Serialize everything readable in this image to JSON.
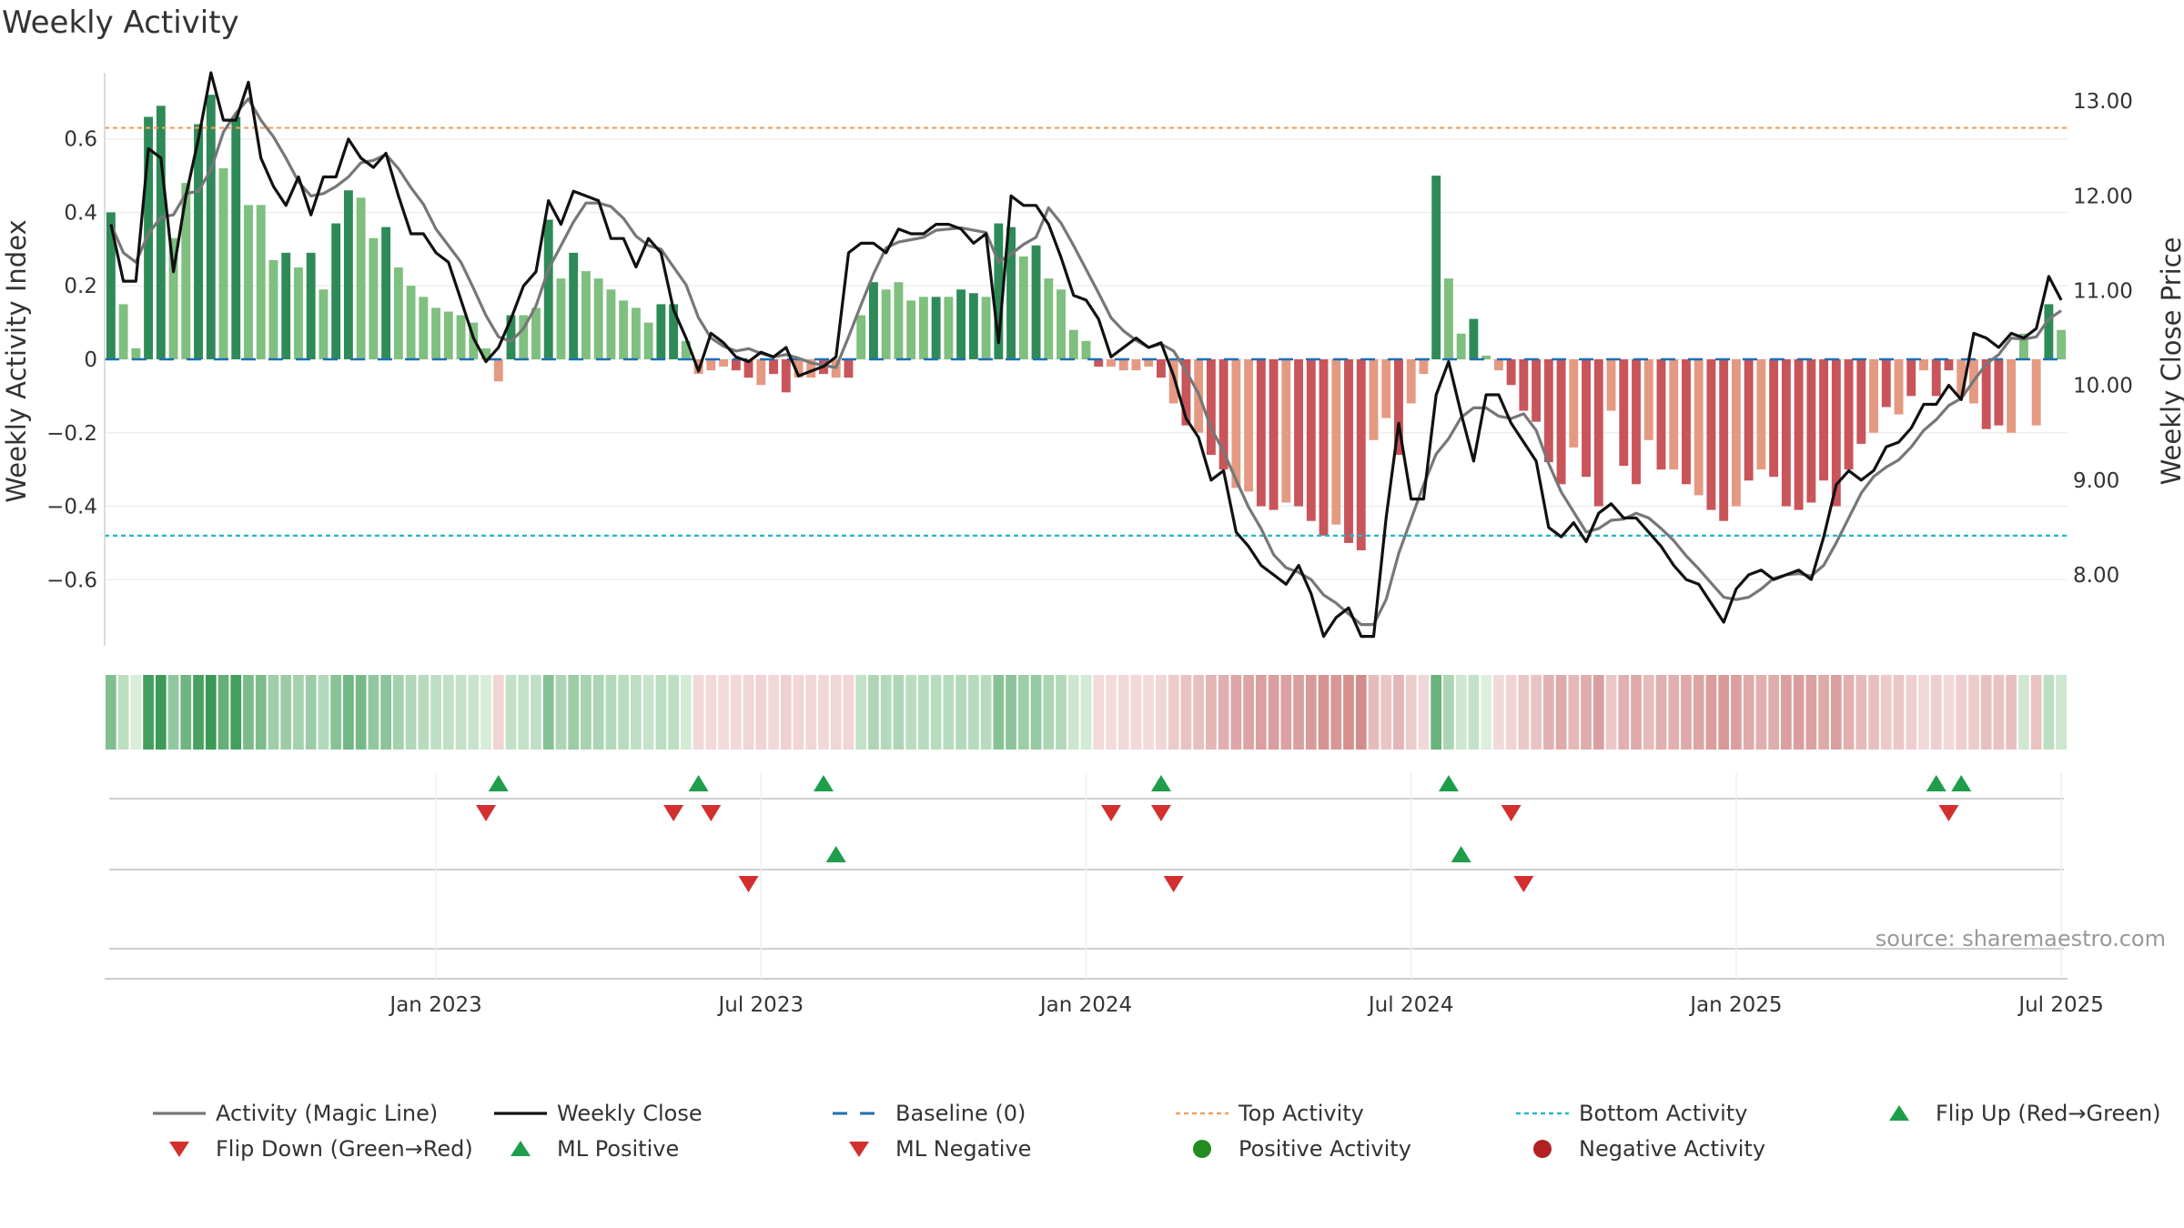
{
  "title": "Weekly Activity",
  "source": "source: sharemaestro.com",
  "colors": {
    "pos_strong": "#2e8b57",
    "pos_light": "#7fbf7f",
    "neg_strong": "#c8555a",
    "neg_light": "#e49a82",
    "magic_line": "#777777",
    "close_line": "#111111",
    "baseline": "#1f6fb2",
    "top_activity": "#f0a060",
    "bottom_activity": "#22b8cf",
    "flip_up": "#1e9e4a",
    "flip_down": "#d32f2f",
    "positive_dot": "#228b22",
    "negative_dot": "#b22222"
  },
  "chart_data": {
    "type": "bar",
    "title": "Weekly Activity",
    "ylabel_left": "Weekly Activity Index",
    "ylabel_right": "Weekly Close Price",
    "ylim_left": [
      -0.78,
      0.78
    ],
    "ylim_right": [
      7.25,
      13.3
    ],
    "yticks_left": [
      {
        "v": 0.6,
        "label": "0.6"
      },
      {
        "v": 0.4,
        "label": "0.4"
      },
      {
        "v": 0.2,
        "label": "0.2"
      },
      {
        "v": 0,
        "label": "0"
      },
      {
        "v": -0.2,
        "label": "−0.2"
      },
      {
        "v": -0.4,
        "label": "−0.4"
      },
      {
        "v": -0.6,
        "label": "−0.6"
      }
    ],
    "yticks_right": [
      {
        "v": 13,
        "label": "13.00"
      },
      {
        "v": 12,
        "label": "12.00"
      },
      {
        "v": 11,
        "label": "11.00"
      },
      {
        "v": 10,
        "label": "10.00"
      },
      {
        "v": 9,
        "label": "9.00"
      },
      {
        "v": 8,
        "label": "8.00"
      }
    ],
    "x_ticks": [
      {
        "week": 26,
        "label": "Jan 2023"
      },
      {
        "week": 52,
        "label": "Jul 2023"
      },
      {
        "week": 78,
        "label": "Jan 2024"
      },
      {
        "week": 104,
        "label": "Jul 2024"
      },
      {
        "week": 130,
        "label": "Jan 2025"
      },
      {
        "week": 156,
        "label": "Jul 2025"
      }
    ],
    "weeks": 157,
    "top_activity": 0.63,
    "bottom_activity": -0.48,
    "baseline": 0,
    "activity_keys": [
      [
        0,
        0.4
      ],
      [
        1,
        0.15
      ],
      [
        2,
        0.03
      ],
      [
        3,
        0.66
      ],
      [
        4,
        0.69
      ],
      [
        5,
        0.33
      ],
      [
        6,
        0.48
      ],
      [
        7,
        0.64
      ],
      [
        8,
        0.72
      ],
      [
        9,
        0.52
      ],
      [
        10,
        0.66
      ],
      [
        11,
        0.42
      ],
      [
        12,
        0.42
      ],
      [
        13,
        0.27
      ],
      [
        14,
        0.29
      ],
      [
        15,
        0.25
      ],
      [
        16,
        0.29
      ],
      [
        17,
        0.19
      ],
      [
        18,
        0.37
      ],
      [
        19,
        0.46
      ],
      [
        20,
        0.44
      ],
      [
        21,
        0.33
      ],
      [
        22,
        0.36
      ],
      [
        23,
        0.25
      ],
      [
        24,
        0.2
      ],
      [
        25,
        0.17
      ],
      [
        26,
        0.14
      ],
      [
        27,
        0.13
      ],
      [
        28,
        0.12
      ],
      [
        29,
        0.1
      ],
      [
        30,
        0.03
      ],
      [
        31,
        -0.06
      ],
      [
        32,
        0.12
      ],
      [
        33,
        0.12
      ],
      [
        34,
        0.14
      ],
      [
        35,
        0.38
      ],
      [
        36,
        0.22
      ],
      [
        37,
        0.29
      ],
      [
        38,
        0.24
      ],
      [
        39,
        0.22
      ],
      [
        40,
        0.19
      ],
      [
        41,
        0.16
      ],
      [
        42,
        0.14
      ],
      [
        43,
        0.1
      ],
      [
        44,
        0.15
      ],
      [
        45,
        0.15
      ],
      [
        46,
        0.05
      ],
      [
        47,
        -0.04
      ],
      [
        48,
        -0.03
      ],
      [
        49,
        -0.02
      ],
      [
        50,
        -0.03
      ],
      [
        51,
        -0.05
      ],
      [
        52,
        -0.07
      ],
      [
        53,
        -0.04
      ],
      [
        54,
        -0.09
      ],
      [
        55,
        -0.05
      ],
      [
        56,
        -0.05
      ],
      [
        57,
        -0.04
      ],
      [
        58,
        -0.05
      ],
      [
        59,
        -0.05
      ],
      [
        60,
        0.12
      ],
      [
        61,
        0.21
      ],
      [
        62,
        0.19
      ],
      [
        63,
        0.21
      ],
      [
        64,
        0.16
      ],
      [
        65,
        0.17
      ],
      [
        66,
        0.17
      ],
      [
        67,
        0.17
      ],
      [
        68,
        0.19
      ],
      [
        69,
        0.18
      ],
      [
        70,
        0.17
      ],
      [
        71,
        0.37
      ],
      [
        72,
        0.36
      ],
      [
        73,
        0.28
      ],
      [
        74,
        0.31
      ],
      [
        75,
        0.22
      ],
      [
        76,
        0.19
      ],
      [
        77,
        0.08
      ],
      [
        78,
        0.05
      ],
      [
        79,
        -0.02
      ],
      [
        80,
        -0.02
      ],
      [
        81,
        -0.03
      ],
      [
        82,
        -0.03
      ],
      [
        83,
        -0.02
      ],
      [
        84,
        -0.05
      ],
      [
        85,
        -0.12
      ],
      [
        86,
        -0.18
      ],
      [
        87,
        -0.2
      ],
      [
        88,
        -0.26
      ],
      [
        89,
        -0.3
      ],
      [
        90,
        -0.35
      ],
      [
        91,
        -0.36
      ],
      [
        92,
        -0.4
      ],
      [
        93,
        -0.41
      ],
      [
        94,
        -0.39
      ],
      [
        95,
        -0.4
      ],
      [
        96,
        -0.44
      ],
      [
        97,
        -0.48
      ],
      [
        98,
        -0.45
      ],
      [
        99,
        -0.5
      ],
      [
        100,
        -0.52
      ],
      [
        101,
        -0.22
      ],
      [
        102,
        -0.16
      ],
      [
        103,
        -0.26
      ],
      [
        104,
        -0.12
      ],
      [
        105,
        -0.04
      ],
      [
        106,
        0.5
      ],
      [
        107,
        0.22
      ],
      [
        108,
        0.07
      ],
      [
        109,
        0.11
      ],
      [
        110,
        0.01
      ],
      [
        111,
        -0.03
      ],
      [
        112,
        -0.07
      ],
      [
        113,
        -0.14
      ],
      [
        114,
        -0.17
      ],
      [
        115,
        -0.28
      ],
      [
        116,
        -0.34
      ],
      [
        117,
        -0.24
      ],
      [
        118,
        -0.32
      ],
      [
        119,
        -0.4
      ],
      [
        120,
        -0.14
      ],
      [
        121,
        -0.29
      ],
      [
        122,
        -0.34
      ],
      [
        123,
        -0.22
      ],
      [
        124,
        -0.3
      ],
      [
        125,
        -0.3
      ],
      [
        126,
        -0.34
      ],
      [
        127,
        -0.37
      ],
      [
        128,
        -0.41
      ],
      [
        129,
        -0.44
      ],
      [
        130,
        -0.4
      ],
      [
        131,
        -0.33
      ],
      [
        132,
        -0.3
      ],
      [
        133,
        -0.32
      ],
      [
        134,
        -0.4
      ],
      [
        135,
        -0.41
      ],
      [
        136,
        -0.39
      ],
      [
        137,
        -0.33
      ],
      [
        138,
        -0.4
      ],
      [
        139,
        -0.3
      ],
      [
        140,
        -0.23
      ],
      [
        141,
        -0.2
      ],
      [
        142,
        -0.13
      ],
      [
        143,
        -0.15
      ],
      [
        144,
        -0.1
      ],
      [
        145,
        -0.03
      ],
      [
        146,
        -0.1
      ],
      [
        147,
        -0.03
      ],
      [
        148,
        -0.1
      ],
      [
        149,
        -0.12
      ],
      [
        150,
        -0.19
      ],
      [
        151,
        -0.18
      ],
      [
        152,
        -0.2
      ],
      [
        153,
        0.07
      ],
      [
        154,
        -0.18
      ],
      [
        155,
        0.15
      ],
      [
        156,
        0.08
      ]
    ],
    "strong_weeks": [
      0,
      3,
      4,
      7,
      8,
      10,
      14,
      16,
      18,
      19,
      22,
      32,
      35,
      37,
      44,
      45,
      50,
      51,
      53,
      54,
      57,
      59,
      61,
      66,
      68,
      69,
      71,
      72,
      74,
      79,
      84,
      86,
      88,
      89,
      92,
      93,
      95,
      96,
      97,
      99,
      100,
      103,
      106,
      109,
      112,
      113,
      114,
      115,
      116,
      118,
      119,
      121,
      122,
      124,
      126,
      128,
      129,
      131,
      133,
      134,
      135,
      136,
      137,
      138,
      139,
      140,
      142,
      144,
      146,
      147,
      150,
      151,
      155
    ],
    "close_keys": [
      [
        0,
        11.7
      ],
      [
        1,
        11.1
      ],
      [
        2,
        11.1
      ],
      [
        3,
        12.5
      ],
      [
        4,
        12.4
      ],
      [
        5,
        11.2
      ],
      [
        6,
        12.0
      ],
      [
        7,
        12.6
      ],
      [
        8,
        13.3
      ],
      [
        9,
        12.8
      ],
      [
        10,
        12.8
      ],
      [
        11,
        13.2
      ],
      [
        12,
        12.4
      ],
      [
        13,
        12.1
      ],
      [
        14,
        11.9
      ],
      [
        15,
        12.2
      ],
      [
        16,
        11.8
      ],
      [
        17,
        12.2
      ],
      [
        18,
        12.2
      ],
      [
        19,
        12.6
      ],
      [
        20,
        12.4
      ],
      [
        21,
        12.3
      ],
      [
        22,
        12.45
      ],
      [
        23,
        12.0
      ],
      [
        24,
        11.6
      ],
      [
        25,
        11.6
      ],
      [
        26,
        11.4
      ],
      [
        27,
        11.3
      ],
      [
        28,
        10.9
      ],
      [
        29,
        10.5
      ],
      [
        30,
        10.25
      ],
      [
        31,
        10.4
      ],
      [
        32,
        10.7
      ],
      [
        33,
        11.05
      ],
      [
        34,
        11.2
      ],
      [
        35,
        11.95
      ],
      [
        36,
        11.7
      ],
      [
        37,
        12.05
      ],
      [
        38,
        12.0
      ],
      [
        39,
        11.95
      ],
      [
        40,
        11.55
      ],
      [
        41,
        11.55
      ],
      [
        42,
        11.25
      ],
      [
        43,
        11.55
      ],
      [
        44,
        11.4
      ],
      [
        45,
        10.8
      ],
      [
        46,
        10.5
      ],
      [
        47,
        10.15
      ],
      [
        48,
        10.55
      ],
      [
        49,
        10.45
      ],
      [
        50,
        10.3
      ],
      [
        51,
        10.25
      ],
      [
        52,
        10.35
      ],
      [
        53,
        10.3
      ],
      [
        54,
        10.4
      ],
      [
        55,
        10.1
      ],
      [
        56,
        10.15
      ],
      [
        57,
        10.2
      ],
      [
        58,
        10.3
      ],
      [
        59,
        11.4
      ],
      [
        60,
        11.5
      ],
      [
        61,
        11.5
      ],
      [
        62,
        11.4
      ],
      [
        63,
        11.65
      ],
      [
        64,
        11.6
      ],
      [
        65,
        11.6
      ],
      [
        66,
        11.7
      ],
      [
        67,
        11.7
      ],
      [
        68,
        11.65
      ],
      [
        69,
        11.5
      ],
      [
        70,
        11.6
      ],
      [
        71,
        10.45
      ],
      [
        72,
        12.0
      ],
      [
        73,
        11.9
      ],
      [
        74,
        11.9
      ],
      [
        75,
        11.7
      ],
      [
        76,
        11.35
      ],
      [
        77,
        10.95
      ],
      [
        78,
        10.9
      ],
      [
        79,
        10.7
      ],
      [
        80,
        10.3
      ],
      [
        81,
        10.4
      ],
      [
        82,
        10.5
      ],
      [
        83,
        10.4
      ],
      [
        84,
        10.45
      ],
      [
        85,
        10.1
      ],
      [
        86,
        9.65
      ],
      [
        87,
        9.45
      ],
      [
        88,
        9.0
      ],
      [
        89,
        9.1
      ],
      [
        90,
        8.45
      ],
      [
        91,
        8.3
      ],
      [
        92,
        8.1
      ],
      [
        93,
        8.0
      ],
      [
        94,
        7.9
      ],
      [
        95,
        8.1
      ],
      [
        96,
        7.8
      ],
      [
        97,
        7.35
      ],
      [
        98,
        7.55
      ],
      [
        99,
        7.65
      ],
      [
        100,
        7.35
      ],
      [
        101,
        7.35
      ],
      [
        102,
        8.6
      ],
      [
        103,
        9.6
      ],
      [
        104,
        8.8
      ],
      [
        105,
        8.8
      ],
      [
        106,
        9.9
      ],
      [
        107,
        10.25
      ],
      [
        108,
        9.7
      ],
      [
        109,
        9.2
      ],
      [
        110,
        9.9
      ],
      [
        111,
        9.9
      ],
      [
        112,
        9.6
      ],
      [
        113,
        9.4
      ],
      [
        114,
        9.2
      ],
      [
        115,
        8.5
      ],
      [
        116,
        8.4
      ],
      [
        117,
        8.55
      ],
      [
        118,
        8.35
      ],
      [
        119,
        8.65
      ],
      [
        120,
        8.75
      ],
      [
        121,
        8.6
      ],
      [
        122,
        8.6
      ],
      [
        123,
        8.45
      ],
      [
        124,
        8.3
      ],
      [
        125,
        8.1
      ],
      [
        126,
        7.95
      ],
      [
        127,
        7.9
      ],
      [
        128,
        7.7
      ],
      [
        129,
        7.5
      ],
      [
        130,
        7.85
      ],
      [
        131,
        8.0
      ],
      [
        132,
        8.05
      ],
      [
        133,
        7.95
      ],
      [
        134,
        8.0
      ],
      [
        135,
        8.05
      ],
      [
        136,
        7.95
      ],
      [
        137,
        8.4
      ],
      [
        138,
        8.95
      ],
      [
        139,
        9.1
      ],
      [
        140,
        9.0
      ],
      [
        141,
        9.1
      ],
      [
        142,
        9.35
      ],
      [
        143,
        9.4
      ],
      [
        144,
        9.55
      ],
      [
        145,
        9.8
      ],
      [
        146,
        9.8
      ],
      [
        147,
        10.0
      ],
      [
        148,
        9.85
      ],
      [
        149,
        10.55
      ],
      [
        150,
        10.5
      ],
      [
        151,
        10.4
      ],
      [
        152,
        10.55
      ],
      [
        153,
        10.5
      ],
      [
        154,
        10.6
      ],
      [
        155,
        11.15
      ],
      [
        156,
        10.9
      ]
    ],
    "flip_up_top": [
      31,
      47,
      57,
      84,
      107,
      146,
      148
    ],
    "flip_down_top": [
      30,
      45,
      48,
      80,
      84,
      112,
      147
    ],
    "ml_positive": [
      58,
      108
    ],
    "ml_negative": [
      51,
      85,
      113
    ]
  },
  "legend": [
    {
      "label": "Activity (Magic Line)",
      "type": "line",
      "color_key": "magic_line"
    },
    {
      "label": "Weekly Close",
      "type": "line",
      "color_key": "close_line"
    },
    {
      "label": "Baseline (0)",
      "type": "dash",
      "color_key": "baseline"
    },
    {
      "label": "Top Activity",
      "type": "dot",
      "color_key": "top_activity"
    },
    {
      "label": "Bottom Activity",
      "type": "dot",
      "color_key": "bottom_activity"
    },
    {
      "label": "Flip Up (Red→Green)",
      "type": "tri-up",
      "color_key": "flip_up"
    },
    {
      "label": "Flip Down (Green→Red)",
      "type": "tri-down",
      "color_key": "flip_down"
    },
    {
      "label": "ML Positive",
      "type": "tri-up",
      "color_key": "flip_up"
    },
    {
      "label": "ML Negative",
      "type": "tri-down",
      "color_key": "flip_down"
    },
    {
      "label": "Positive Activity",
      "type": "circle",
      "color_key": "positive_dot"
    },
    {
      "label": "Negative Activity",
      "type": "circle",
      "color_key": "negative_dot"
    }
  ]
}
